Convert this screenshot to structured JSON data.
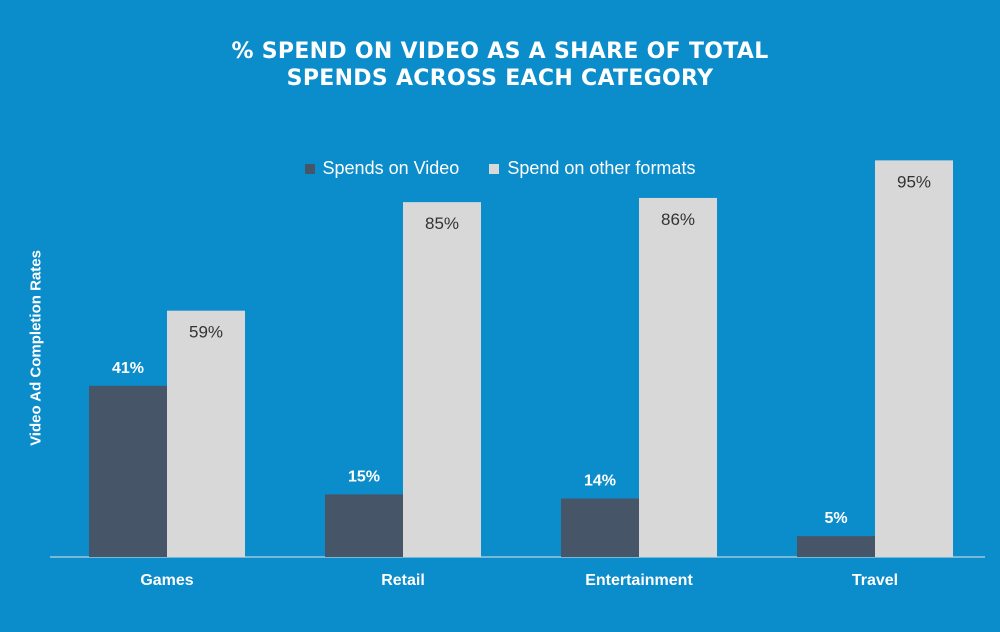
{
  "title": {
    "line1": "% SPEND ON VIDEO AS A SHARE OF TOTAL",
    "line2": "SPENDS ACROSS EACH CATEGORY"
  },
  "colors": {
    "background": "#0b8ccb",
    "video": "#475569",
    "other": "#d8d8d8",
    "baseline": "#9fc6dd"
  },
  "chart_data": {
    "type": "bar",
    "title": "% SPEND ON VIDEO AS A SHARE OF TOTAL SPENDS ACROSS EACH CATEGORY",
    "ylabel": "Video Ad Completion Rates",
    "xlabel": "",
    "ylim": [
      0,
      100
    ],
    "grid": false,
    "legend_position": "top-center",
    "categories": [
      "Games",
      "Retail",
      "Entertainment",
      "Travel"
    ],
    "series": [
      {
        "name": "Spends on Video",
        "values": [
          41,
          15,
          14,
          5
        ],
        "labels": [
          "41%",
          "15%",
          "14%",
          "5%"
        ]
      },
      {
        "name": "Spend on other formats",
        "values": [
          59,
          85,
          86,
          95
        ],
        "labels": [
          "59%",
          "85%",
          "86%",
          "95%"
        ]
      }
    ]
  }
}
